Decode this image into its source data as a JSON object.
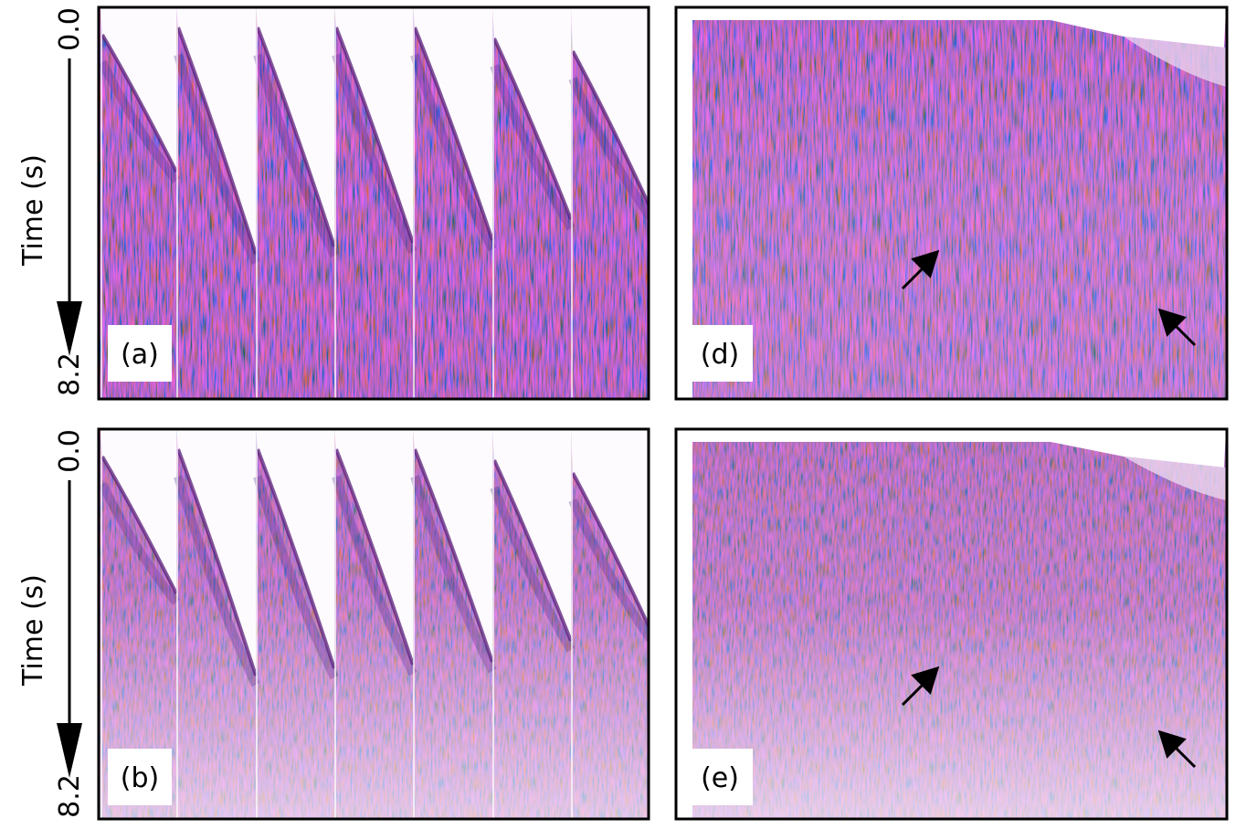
{
  "axes": [
    {
      "title": "Time (s)",
      "top": "0.0",
      "bottom": "8.2"
    },
    {
      "title": "Time (s)",
      "top": "0.0",
      "bottom": "8.2"
    }
  ],
  "panels": [
    {
      "label": "(a)"
    },
    {
      "label": "(d)"
    },
    {
      "label": "(b)"
    },
    {
      "label": "(e)"
    }
  ]
}
